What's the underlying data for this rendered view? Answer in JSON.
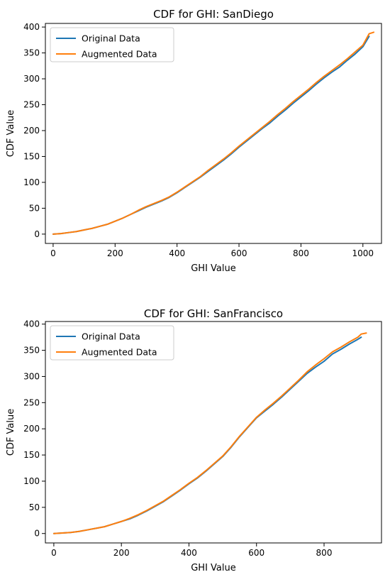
{
  "chart_data": [
    {
      "type": "line",
      "title": "CDF for GHI: SanDiego",
      "xlabel": "GHI Value",
      "ylabel": "CDF Value",
      "xlim": [
        -25,
        1060
      ],
      "ylim": [
        -18,
        407
      ],
      "xticks": [
        0,
        200,
        400,
        600,
        800,
        1000
      ],
      "yticks": [
        0,
        50,
        100,
        150,
        200,
        250,
        300,
        350,
        400
      ],
      "grid": false,
      "legend_position": "top-left",
      "series": [
        {
          "name": "Original Data",
          "color": "#1f77b4",
          "x": [
            0,
            25,
            50,
            75,
            100,
            125,
            150,
            175,
            200,
            225,
            250,
            275,
            300,
            325,
            350,
            375,
            400,
            425,
            450,
            475,
            500,
            525,
            550,
            575,
            600,
            625,
            650,
            675,
            700,
            725,
            750,
            775,
            800,
            825,
            850,
            875,
            900,
            925,
            950,
            975,
            1000,
            1020
          ],
          "y": [
            0,
            1,
            3,
            5,
            8,
            11,
            15,
            19,
            25,
            31,
            38,
            45,
            52,
            58,
            64,
            71,
            80,
            90,
            100,
            110,
            121,
            132,
            143,
            155,
            168,
            180,
            192,
            204,
            215,
            228,
            240,
            253,
            265,
            277,
            290,
            302,
            313,
            323,
            336,
            348,
            362,
            382
          ]
        },
        {
          "name": "Augmented Data",
          "color": "#ff7f0e",
          "x": [
            0,
            25,
            50,
            75,
            100,
            125,
            150,
            175,
            200,
            225,
            250,
            275,
            300,
            325,
            350,
            375,
            400,
            425,
            450,
            475,
            500,
            525,
            550,
            575,
            600,
            625,
            650,
            675,
            700,
            725,
            750,
            775,
            800,
            825,
            850,
            875,
            900,
            925,
            950,
            975,
            1000,
            1020,
            1035
          ],
          "y": [
            0,
            1,
            3,
            5,
            8,
            11,
            15,
            19,
            25,
            31,
            38,
            46,
            53,
            59,
            65,
            72,
            81,
            91,
            101,
            111,
            123,
            134,
            145,
            157,
            170,
            182,
            194,
            206,
            218,
            231,
            243,
            256,
            268,
            280,
            293,
            305,
            316,
            327,
            339,
            352,
            365,
            387,
            390
          ]
        }
      ]
    },
    {
      "type": "line",
      "title": "CDF for GHI: SanFrancisco",
      "xlabel": "GHI Value",
      "ylabel": "CDF Value",
      "xlim": [
        -25,
        970
      ],
      "ylim": [
        -18,
        405
      ],
      "xticks": [
        0,
        200,
        400,
        600,
        800
      ],
      "yticks": [
        0,
        50,
        100,
        150,
        200,
        250,
        300,
        350,
        400
      ],
      "grid": false,
      "legend_position": "top-left",
      "series": [
        {
          "name": "Original Data",
          "color": "#1f77b4",
          "x": [
            0,
            25,
            50,
            75,
            100,
            125,
            150,
            175,
            200,
            225,
            250,
            275,
            300,
            325,
            350,
            375,
            400,
            425,
            450,
            475,
            500,
            525,
            550,
            575,
            600,
            625,
            650,
            675,
            700,
            725,
            750,
            775,
            800,
            825,
            850,
            875,
            900,
            910
          ],
          "y": [
            0,
            1,
            2,
            4,
            7,
            10,
            13,
            18,
            23,
            28,
            35,
            43,
            52,
            61,
            72,
            83,
            95,
            106,
            119,
            133,
            147,
            165,
            185,
            203,
            221,
            234,
            247,
            261,
            276,
            291,
            306,
            318,
            329,
            343,
            352,
            362,
            371,
            375
          ]
        },
        {
          "name": "Augmented Data",
          "color": "#ff7f0e",
          "x": [
            0,
            25,
            50,
            75,
            100,
            125,
            150,
            175,
            200,
            225,
            250,
            275,
            300,
            325,
            350,
            375,
            400,
            425,
            450,
            475,
            500,
            525,
            550,
            575,
            600,
            625,
            650,
            675,
            700,
            725,
            750,
            775,
            800,
            825,
            850,
            875,
            900,
            910,
            925
          ],
          "y": [
            0,
            1,
            2,
            4,
            7,
            10,
            13,
            18,
            23,
            29,
            36,
            44,
            53,
            62,
            73,
            84,
            96,
            107,
            120,
            134,
            148,
            166,
            186,
            204,
            222,
            236,
            249,
            263,
            278,
            293,
            309,
            322,
            334,
            347,
            356,
            366,
            375,
            381,
            383
          ]
        }
      ]
    }
  ]
}
